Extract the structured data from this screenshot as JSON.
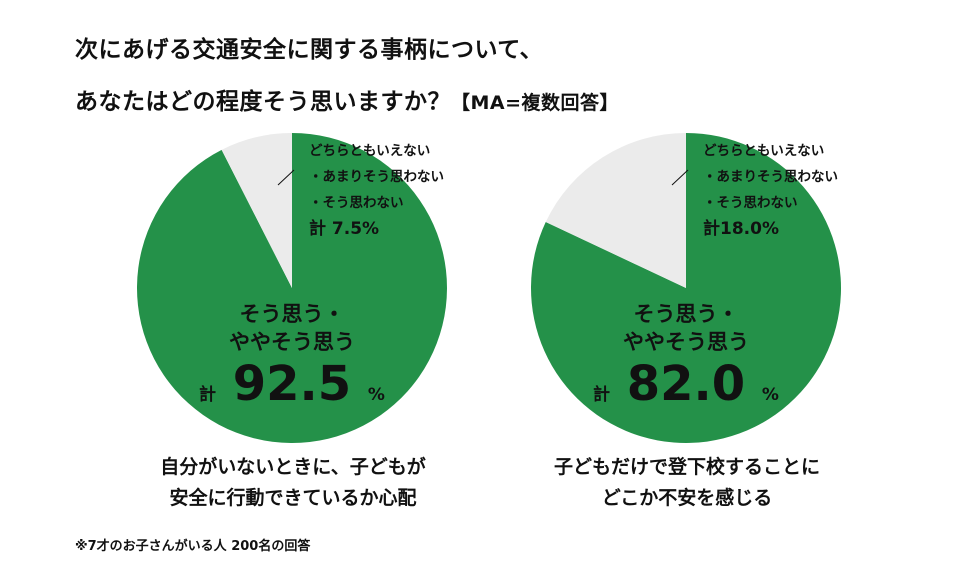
{
  "title": {
    "line1": "次にあげる交通安全に関する事柄について、",
    "line2": "あなたはどの程度そう思いますか？",
    "tag": "【MA=複数回答】"
  },
  "colors": {
    "agree": "#249149",
    "disagree": "#ebebeb"
  },
  "chart_data": [
    {
      "type": "pie",
      "title": "自分がいないときに、子どもが安全に行動できているか心配",
      "caption_lines": [
        "自分がいないときに、子どもが",
        "安全に行動できているか心配"
      ],
      "slices": [
        {
          "name": "そう思う・ややそう思う",
          "value": 92.5
        },
        {
          "name": "どちらともいえない・あまりそう思わない・そう思わない",
          "value": 7.5
        }
      ],
      "agree_label": [
        "そう思う・",
        "ややそう思う"
      ],
      "agree_total_prefix": "計",
      "agree_value": "92.5",
      "percent": "%",
      "disagree_label": [
        "どちらともいえない",
        "・あまりそう思わない",
        "・そう思わない"
      ],
      "disagree_total": "計 7.5%"
    },
    {
      "type": "pie",
      "title": "子どもだけで登下校することにどこか不安を感じる",
      "caption_lines": [
        "子どもだけで登下校することに",
        "どこか不安を感じる"
      ],
      "slices": [
        {
          "name": "そう思う・ややそう思う",
          "value": 82.0
        },
        {
          "name": "どちらともいえない・あまりそう思わない・そう思わない",
          "value": 18.0
        }
      ],
      "agree_label": [
        "そう思う・",
        "ややそう思う"
      ],
      "agree_total_prefix": "計",
      "agree_value": "82.0",
      "percent": "%",
      "disagree_label": [
        "どちらともいえない",
        "・あまりそう思わない",
        "・そう思わない"
      ],
      "disagree_total": "計18.0%"
    }
  ],
  "note": "※7才のお子さんがいる人 200名の回答"
}
